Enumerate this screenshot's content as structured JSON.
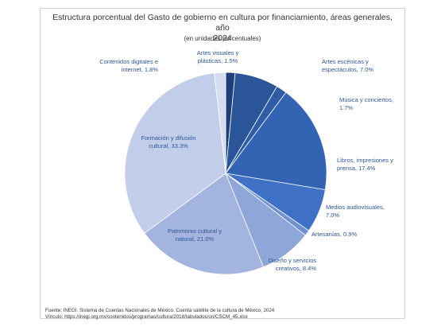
{
  "chart_data": {
    "type": "pie",
    "title": "Estructura porcentual del Gasto de gobierno en cultura por financiamiento, áreas generales, año 2024",
    "title_lines": [
      "Estructura porcentual del Gasto de gobierno en cultura por financiamiento, áreas generales, año",
      "2024"
    ],
    "subtitle": "(en unidades porcentuales)",
    "slices": [
      {
        "label": "Artes visuales y plásticas",
        "value": 1.5,
        "text": [
          "Artes visuales y",
          "plásticas, 1.5%"
        ],
        "color": "#1f3f7a"
      },
      {
        "label": "Artes escénicas y espectáculos",
        "value": 7.0,
        "text": [
          "Artes escénicas y",
          "espectáculos, 7.0%"
        ],
        "color": "#2a5599"
      },
      {
        "label": "Música y conciertos",
        "value": 1.7,
        "text": [
          "Música y conciertos,",
          "1.7%"
        ],
        "color": "#2f5da6"
      },
      {
        "label": "Libros, impresiones y prensa",
        "value": 17.4,
        "text": [
          "Libros, impresiones y",
          "prensa, 17.4%"
        ],
        "color": "#3363b3"
      },
      {
        "label": "Medios audiovisuales",
        "value": 7.0,
        "text": [
          "Medios audiovisuales,",
          "7.0%"
        ],
        "color": "#3f72c7"
      },
      {
        "label": "Artesanías",
        "value": 0.9,
        "text": [
          "Artesanías, 0.9%"
        ],
        "color": "#6f8fcf"
      },
      {
        "label": "Diseño y servicios creativos",
        "value": 8.4,
        "text": [
          "Diseño y servicios",
          "creativos, 8.4%"
        ],
        "color": "#8ea6d8"
      },
      {
        "label": "Patrimonio cultural y natural",
        "value": 21.0,
        "text": [
          "Patrimonio cultural y",
          "natural, 21.0%"
        ],
        "color": "#a3b5df"
      },
      {
        "label": "Formación y difusión cultural",
        "value": 33.3,
        "text": [
          "Formación y difusión",
          "cultural, 33.3%"
        ],
        "color": "#c2cdea"
      },
      {
        "label": "Contenidos digitales e internet",
        "value": 1.8,
        "text": [
          "Contenidos digitales e",
          "internet, 1.8%"
        ],
        "color": "#d6ddf0"
      }
    ],
    "label_color": "#2e5597",
    "legend": "none"
  },
  "footer": {
    "source": "Fuente: INEGI. Sistema de Cuentas Nacionales de México. Cuenta satélite de la cultura de México, 2024",
    "link": "Vínculo: https://inegi.org.mx/contenidos/programas/cultura/2018/tabulados/ori/CSCM_45.xlsx"
  }
}
